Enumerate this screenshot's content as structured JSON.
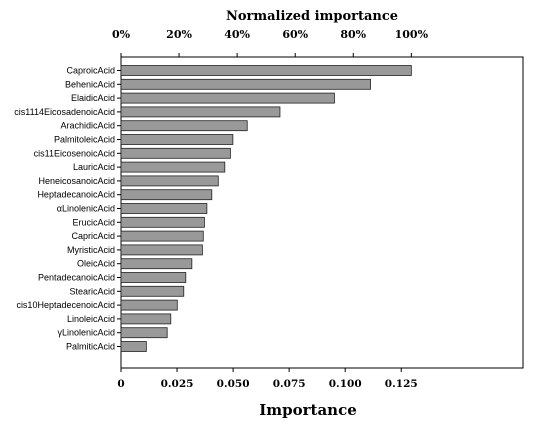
{
  "chart_data": {
    "type": "bar",
    "orientation": "horizontal",
    "xlabel": "Importance",
    "x2label": "Normalized importance",
    "xlim": [
      0,
      0.14
    ],
    "xticks": [
      "0",
      "0.025",
      "0.050",
      "0.075",
      "0.100",
      "0.125"
    ],
    "x2ticks": [
      "0%",
      "20%",
      "40%",
      "60%",
      "80%",
      "100%"
    ],
    "categories": [
      "CaproicAcid",
      "BehenicAcid",
      "ElaidicAcid",
      "cis1114EicosadenoicAcid",
      "ArachidicAcid",
      "PalmitoleicAcid",
      "cis11EicosenoicAcid",
      "LauricAcid",
      "HeneicosanoicAcid",
      "HeptadecanoicAcid",
      "αLinolenicAcid",
      "ErucicAcid",
      "CapricAcid",
      "MyristicAcid",
      "OleicAcid",
      "PentadecanoicAcid",
      "StearicAcid",
      "cis10HeptadecenoicAcid",
      "LinoleicAcid",
      "γLinolenicAcid",
      "PalmiticAcid"
    ],
    "values": [
      0.1295,
      0.1113,
      0.0952,
      0.0709,
      0.0563,
      0.0499,
      0.0488,
      0.0463,
      0.0434,
      0.0405,
      0.0383,
      0.0372,
      0.0367,
      0.0363,
      0.0316,
      0.0289,
      0.028,
      0.0251,
      0.0222,
      0.0206,
      0.0113
    ],
    "grid": false,
    "colors": {
      "bar_fill": "#999999",
      "bar_stroke": "#222222",
      "axis": "#000000"
    }
  }
}
